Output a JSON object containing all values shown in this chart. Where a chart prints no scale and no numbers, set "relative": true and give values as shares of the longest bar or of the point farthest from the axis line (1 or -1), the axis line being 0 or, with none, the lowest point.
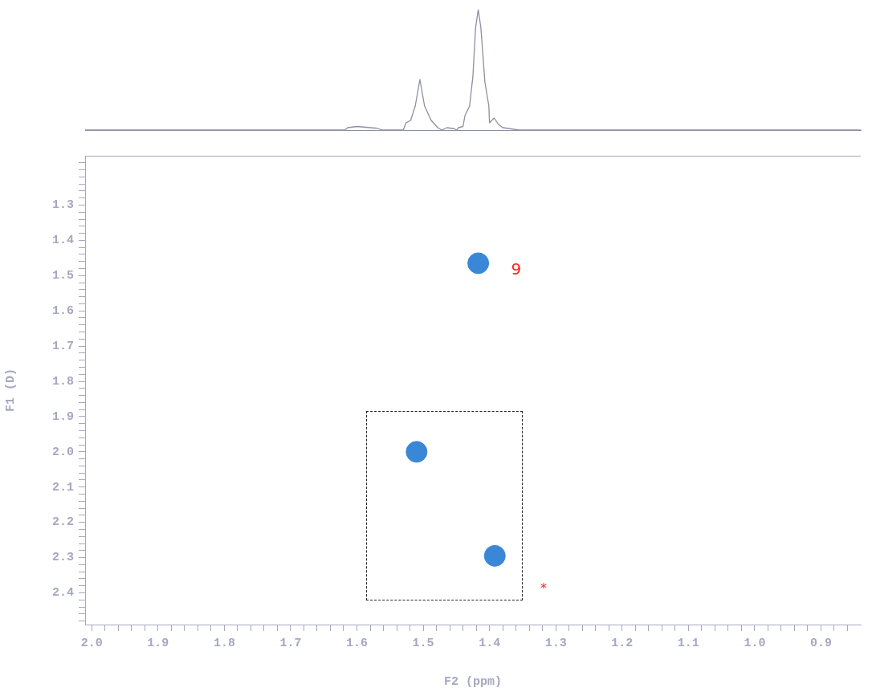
{
  "chart_data": [
    {
      "type": "line",
      "relative": true,
      "grid": false,
      "legend": false,
      "marker": "none",
      "line_style": "solid",
      "xlim": [
        2.01,
        0.84
      ],
      "series": [
        {
          "color": "#8c8ea3",
          "x": [
            2.01,
            1.618,
            1.614,
            1.6,
            1.57,
            1.561,
            1.53,
            1.526,
            1.519,
            1.512,
            1.505,
            1.498,
            1.488,
            1.478,
            1.472,
            1.464,
            1.453,
            1.449,
            1.447,
            1.44,
            1.437,
            1.43,
            1.425,
            1.421,
            1.417,
            1.413,
            1.407,
            1.401,
            1.4,
            1.393,
            1.387,
            1.38,
            1.356,
            0.84
          ],
          "values": [
            0,
            0,
            0.02,
            0.03,
            0.015,
            0,
            0,
            0.06,
            0.08,
            0.2,
            0.42,
            0.2,
            0.08,
            0.02,
            0,
            0.02,
            0.01,
            0,
            0.02,
            0.03,
            0.12,
            0.2,
            0.45,
            0.85,
            1,
            0.85,
            0.4,
            0.2,
            0.06,
            0.1,
            0.05,
            0.02,
            0,
            0
          ]
        }
      ]
    },
    {
      "type": "scatter",
      "xlabel": "F2 (ppm)",
      "ylabel": "F1 (D)",
      "grid": false,
      "legend": false,
      "marker": "circle",
      "xlim": [
        2.01,
        0.84
      ],
      "ylim": [
        2.49,
        1.16
      ],
      "xticks": [
        {
          "value": 2,
          "label": "2.0"
        },
        {
          "value": 1.98,
          "label": null
        },
        {
          "value": 1.96,
          "label": null
        },
        {
          "value": 1.94,
          "label": null
        },
        {
          "value": 1.92,
          "label": null
        },
        1.9,
        {
          "value": 1.88,
          "label": null
        },
        {
          "value": 1.86,
          "label": null
        },
        {
          "value": 1.84,
          "label": null
        },
        {
          "value": 1.82,
          "label": null
        },
        1.8,
        {
          "value": 1.78,
          "label": null
        },
        {
          "value": 1.76,
          "label": null
        },
        {
          "value": 1.74,
          "label": null
        },
        {
          "value": 1.72,
          "label": null
        },
        1.7,
        {
          "value": 1.68,
          "label": null
        },
        {
          "value": 1.66,
          "label": null
        },
        {
          "value": 1.64,
          "label": null
        },
        {
          "value": 1.62,
          "label": null
        },
        1.6,
        {
          "value": 1.58,
          "label": null
        },
        {
          "value": 1.56,
          "label": null
        },
        {
          "value": 1.54,
          "label": null
        },
        {
          "value": 1.52,
          "label": null
        },
        1.5,
        {
          "value": 1.48,
          "label": null
        },
        {
          "value": 1.46,
          "label": null
        },
        {
          "value": 1.44,
          "label": null
        },
        {
          "value": 1.42,
          "label": null
        },
        1.4,
        {
          "value": 1.38,
          "label": null
        },
        {
          "value": 1.36,
          "label": null
        },
        {
          "value": 1.34,
          "label": null
        },
        {
          "value": 1.32,
          "label": null
        },
        1.3,
        {
          "value": 1.28,
          "label": null
        },
        {
          "value": 1.26,
          "label": null
        },
        {
          "value": 1.24,
          "label": null
        },
        {
          "value": 1.22,
          "label": null
        },
        1.2,
        {
          "value": 1.18,
          "label": null
        },
        {
          "value": 1.16,
          "label": null
        },
        {
          "value": 1.14,
          "label": null
        },
        {
          "value": 1.12,
          "label": null
        },
        1.1,
        {
          "value": 1.08,
          "label": null
        },
        {
          "value": 1.06,
          "label": null
        },
        {
          "value": 1.04,
          "label": null
        },
        {
          "value": 1.02,
          "label": null
        },
        {
          "value": 1,
          "label": "1.0"
        },
        {
          "value": 0.98,
          "label": null
        },
        {
          "value": 0.96,
          "label": null
        },
        {
          "value": 0.94,
          "label": null
        },
        {
          "value": 0.92,
          "label": null
        },
        0.9,
        {
          "value": 0.88,
          "label": null
        },
        {
          "value": 0.86,
          "label": null
        }
      ],
      "yticks": [
        {
          "value": 1.18,
          "label": null
        },
        {
          "value": 1.2,
          "label": null
        },
        {
          "value": 1.22,
          "label": null
        },
        {
          "value": 1.24,
          "label": null
        },
        {
          "value": 1.26,
          "label": null
        },
        {
          "value": 1.28,
          "label": null
        },
        1.3,
        {
          "value": 1.32,
          "label": null
        },
        {
          "value": 1.34,
          "label": null
        },
        {
          "value": 1.36,
          "label": null
        },
        {
          "value": 1.38,
          "label": null
        },
        1.4,
        {
          "value": 1.42,
          "label": null
        },
        {
          "value": 1.44,
          "label": null
        },
        {
          "value": 1.46,
          "label": null
        },
        {
          "value": 1.48,
          "label": null
        },
        1.5,
        {
          "value": 1.52,
          "label": null
        },
        {
          "value": 1.54,
          "label": null
        },
        {
          "value": 1.56,
          "label": null
        },
        {
          "value": 1.58,
          "label": null
        },
        1.6,
        {
          "value": 1.62,
          "label": null
        },
        {
          "value": 1.64,
          "label": null
        },
        {
          "value": 1.66,
          "label": null
        },
        {
          "value": 1.68,
          "label": null
        },
        1.7,
        {
          "value": 1.72,
          "label": null
        },
        {
          "value": 1.74,
          "label": null
        },
        {
          "value": 1.76,
          "label": null
        },
        {
          "value": 1.78,
          "label": null
        },
        1.8,
        {
          "value": 1.82,
          "label": null
        },
        {
          "value": 1.84,
          "label": null
        },
        {
          "value": 1.86,
          "label": null
        },
        {
          "value": 1.88,
          "label": null
        },
        1.9,
        {
          "value": 1.92,
          "label": null
        },
        {
          "value": 1.94,
          "label": null
        },
        {
          "value": 1.96,
          "label": null
        },
        {
          "value": 1.98,
          "label": null
        },
        {
          "value": 2,
          "label": "2.0"
        },
        {
          "value": 2.02,
          "label": null
        },
        {
          "value": 2.04,
          "label": null
        },
        {
          "value": 2.06,
          "label": null
        },
        {
          "value": 2.08,
          "label": null
        },
        2.1,
        {
          "value": 2.12,
          "label": null
        },
        {
          "value": 2.14,
          "label": null
        },
        {
          "value": 2.16,
          "label": null
        },
        {
          "value": 2.18,
          "label": null
        },
        2.2,
        {
          "value": 2.22,
          "label": null
        },
        {
          "value": 2.24,
          "label": null
        },
        {
          "value": 2.26,
          "label": null
        },
        {
          "value": 2.28,
          "label": null
        },
        2.3,
        {
          "value": 2.32,
          "label": null
        },
        {
          "value": 2.34,
          "label": null
        },
        {
          "value": 2.36,
          "label": null
        },
        {
          "value": 2.38,
          "label": null
        },
        2.4,
        {
          "value": 2.42,
          "label": null
        },
        {
          "value": 2.44,
          "label": null
        },
        {
          "value": 2.46,
          "label": null
        },
        {
          "value": 2.48,
          "label": null
        }
      ],
      "series": [
        {
          "color": "#3a87d8",
          "x": [
            1.417,
            1.51,
            1.392
          ],
          "values": [
            1.465,
            2.0,
            2.295
          ]
        }
      ],
      "annotations": [
        "9",
        "*"
      ]
    }
  ]
}
